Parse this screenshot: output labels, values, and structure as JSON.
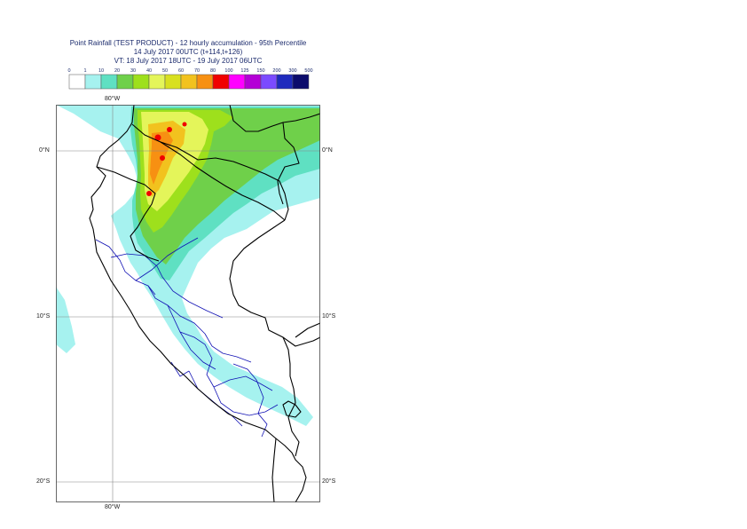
{
  "header": {
    "title_line1": "Point Rainfall (TEST PRODUCT) - 12 hourly accumulation - 95th Percentile",
    "title_line2": "14 July 2017 00UTC (t+114,t+126)",
    "title_line3": "VT: 18 July 2017 18UTC - 19 July 2017 06UTC"
  },
  "legend": {
    "thresholds": [
      "0",
      "1",
      "10",
      "20",
      "30",
      "40",
      "50",
      "60",
      "70",
      "80",
      "100",
      "125",
      "150",
      "200",
      "300",
      "500"
    ],
    "colors": [
      "#ffffff",
      "#a6f2ef",
      "#5fe0c2",
      "#6fd04a",
      "#9ee01c",
      "#e4f55a",
      "#d8e020",
      "#f2c21e",
      "#f79012",
      "#f00000",
      "#ff00ff",
      "#b400d6",
      "#7b4bff",
      "#1f2bbd",
      "#0c0c6c"
    ]
  },
  "map": {
    "lat_labels": {
      "north": "0°N",
      "south1": "10°S",
      "south2": "20°S"
    },
    "lon_label": "80°W",
    "colors": {
      "land_border": "#000000",
      "region_border": "#1010b4",
      "grid": "#888888"
    }
  }
}
